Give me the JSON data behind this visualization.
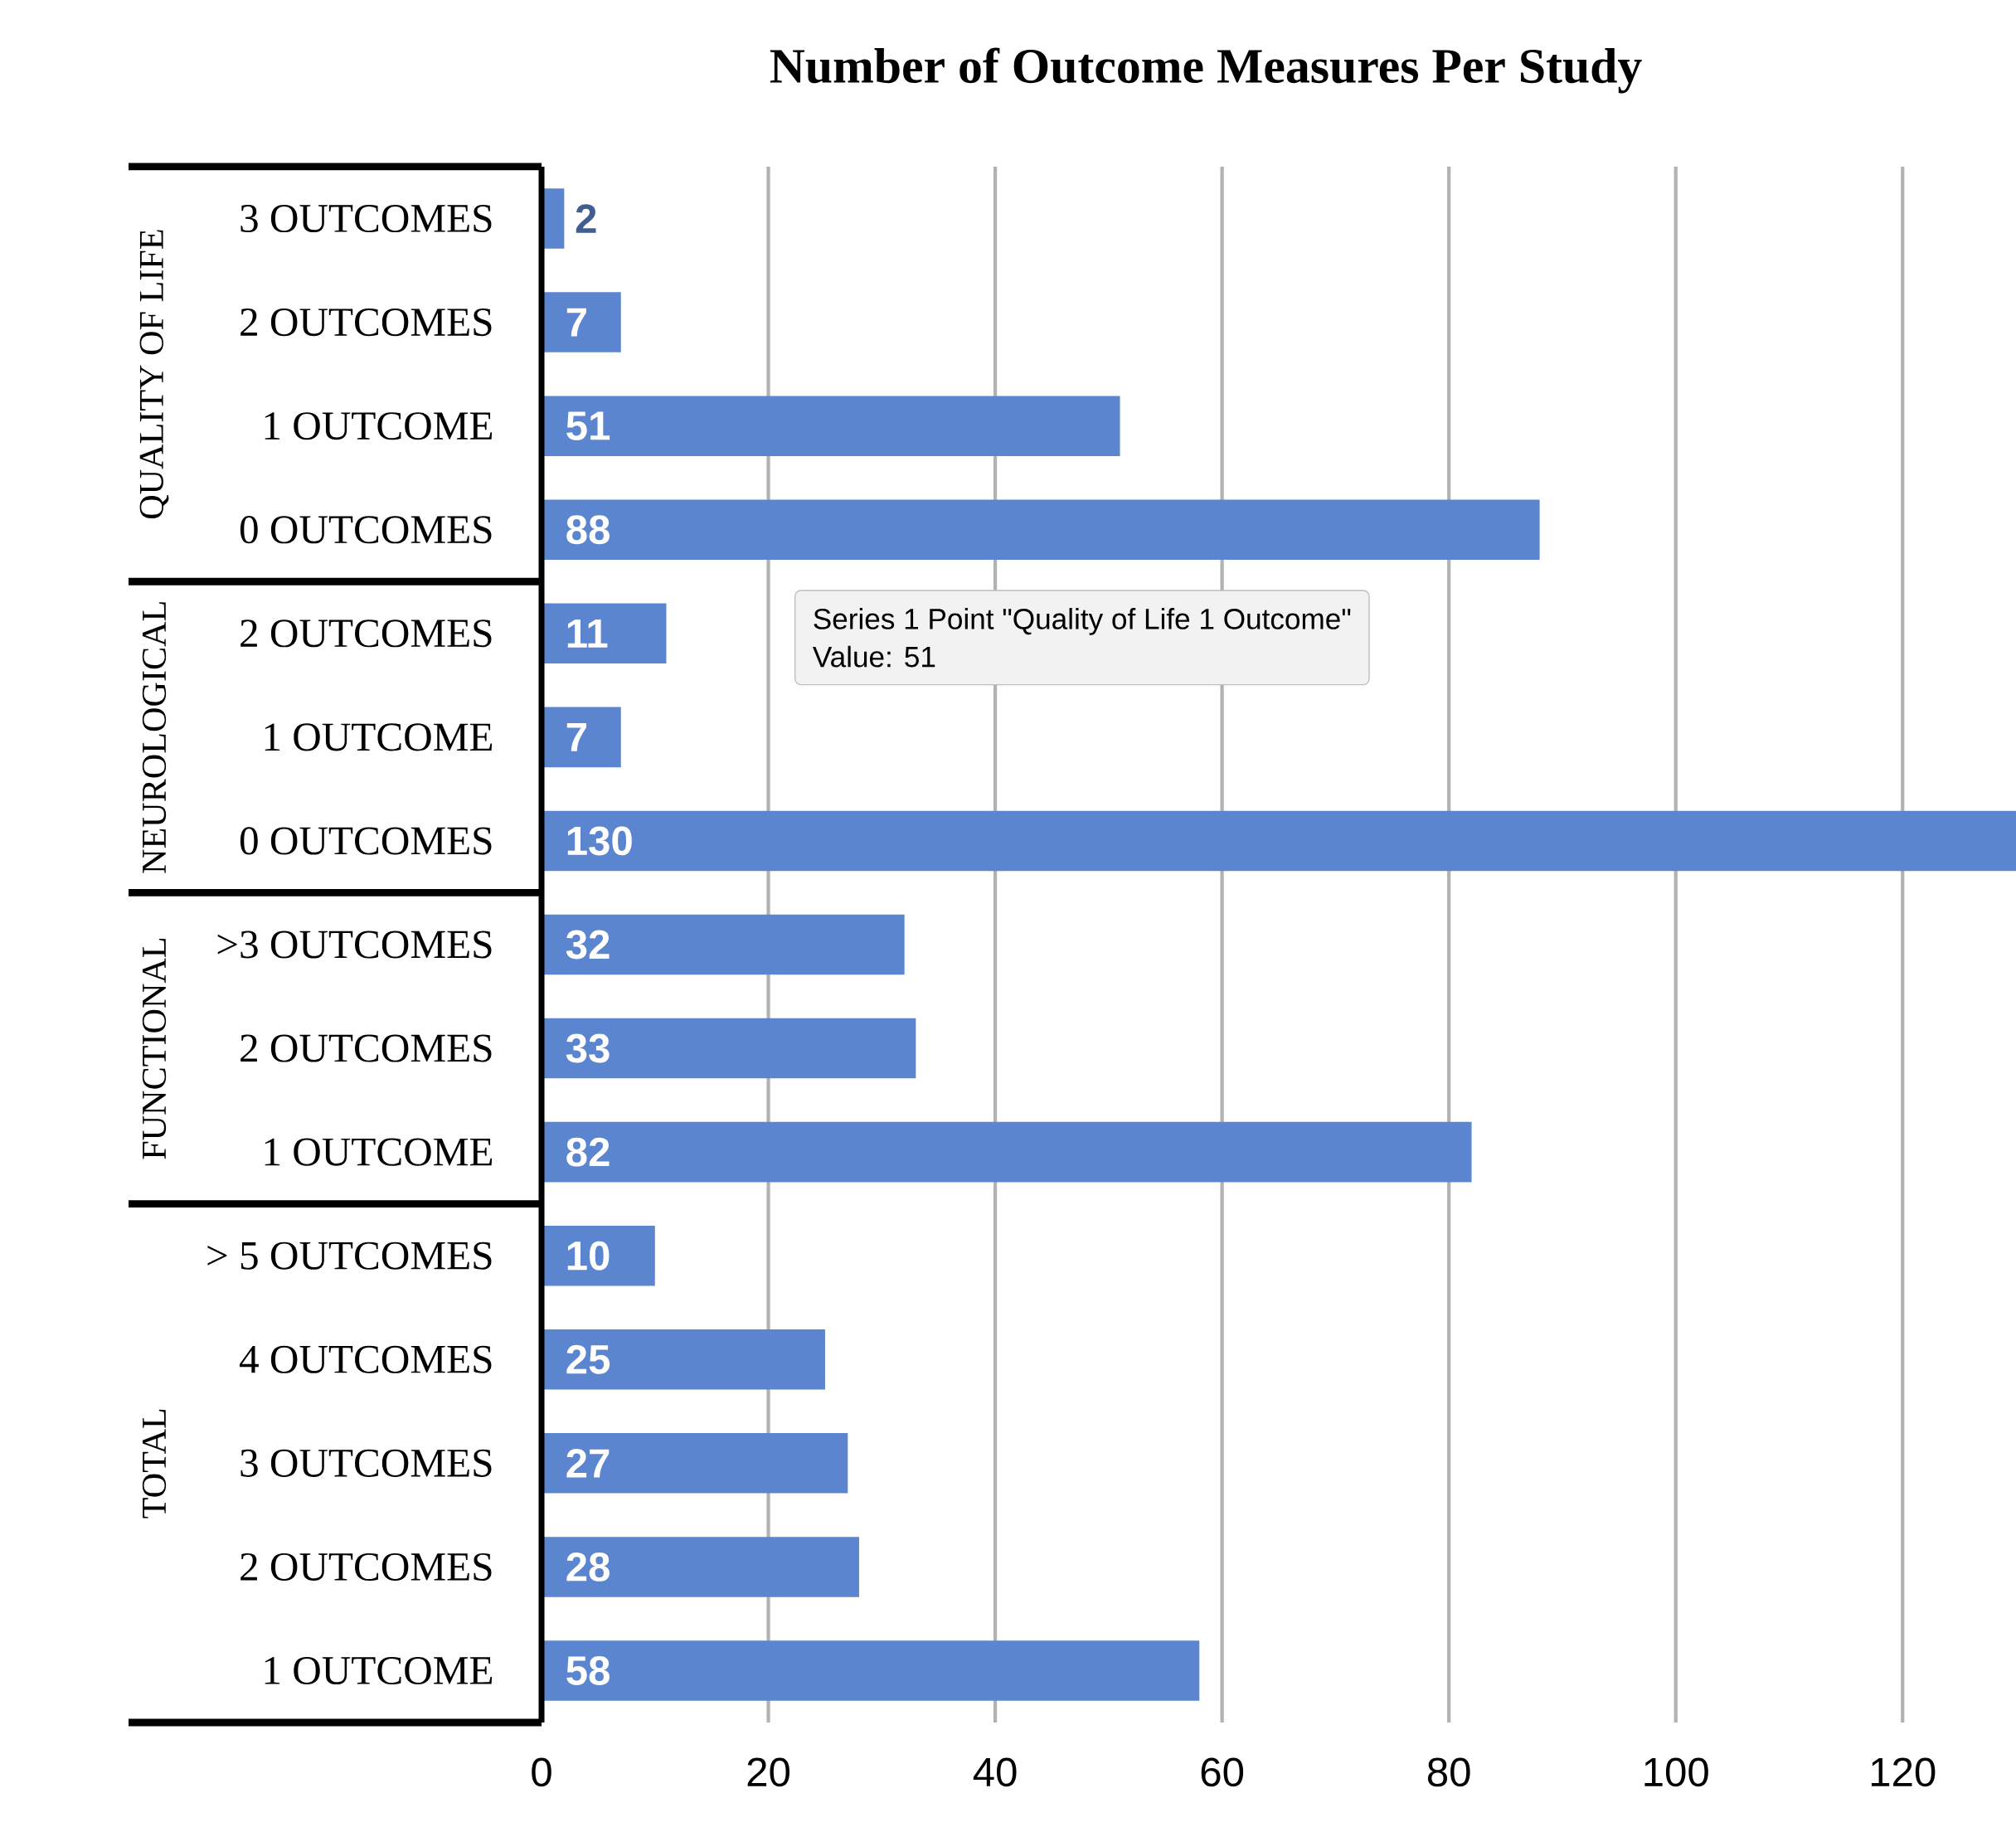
{
  "chart_data": {
    "type": "bar",
    "orientation": "horizontal",
    "title": "Number of Outcome Measures Per Study",
    "categories": [
      "3 OUTCOMES",
      "2 OUTCOMES",
      "1 OUTCOME",
      "0 OUTCOMES",
      "2 OUTCOMES",
      "1 OUTCOME",
      "0 OUTCOMES",
      ">3 OUTCOMES",
      "2 OUTCOMES",
      "1 OUTCOME",
      "> 5 OUTCOMES",
      "4 OUTCOMES",
      "3 OUTCOMES",
      "2 OUTCOMES",
      "1 OUTCOME"
    ],
    "values": [
      2,
      7,
      51,
      88,
      11,
      7,
      130,
      32,
      33,
      82,
      10,
      25,
      27,
      28,
      58
    ],
    "color": "#5b86cf",
    "xlim": [
      0,
      130
    ],
    "xticks": [
      0,
      20,
      40,
      60,
      80,
      100,
      120
    ],
    "grid": "x",
    "data_labels": true,
    "annotations": [
      "QUALITY OF LIFE",
      "NEUROLOGICAL",
      "FUNCTIONAL",
      "TOTAL",
      "Series 1 Point \"Quality of Life 1 Outcome\"",
      "Value: 51"
    ]
  }
}
